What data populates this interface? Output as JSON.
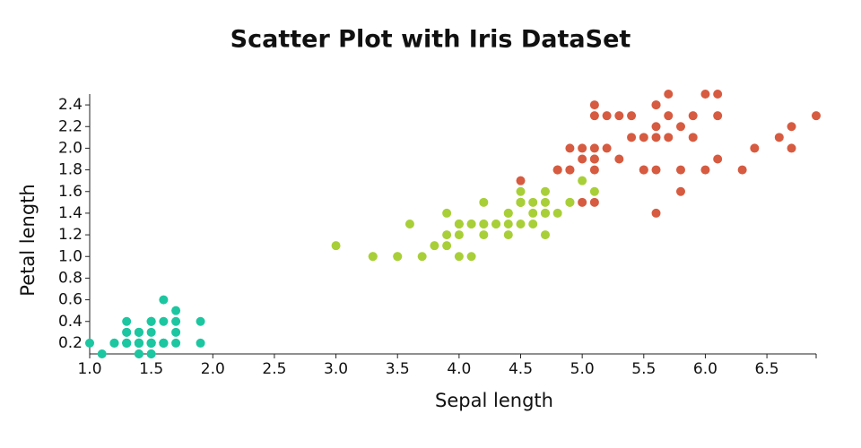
{
  "chart_data": {
    "type": "scatter",
    "title": "Scatter Plot with Iris DataSet",
    "x_label": "Sepal length",
    "y_label": "Petal length",
    "xlim": [
      1,
      6.9
    ],
    "ylim": [
      0.1,
      2.5
    ],
    "xticks": [
      {
        "value": 1,
        "label": "1.0"
      },
      1.5,
      {
        "value": 2,
        "label": "2.0"
      },
      2.5,
      {
        "value": 3,
        "label": "3.0"
      },
      3.5,
      {
        "value": 4,
        "label": "4.0"
      },
      4.5,
      {
        "value": 5,
        "label": "5.0"
      },
      5.5,
      {
        "value": 6,
        "label": "6.0"
      },
      6.5
    ],
    "yticks": [
      0.2,
      0.4,
      0.6,
      0.8,
      {
        "value": 1,
        "label": "1.0"
      },
      1.2,
      1.4,
      1.6,
      1.8,
      {
        "value": 2,
        "label": "2.0"
      },
      2.2,
      2.4
    ],
    "grid": false,
    "series": [
      {
        "color": "#1cc6a0",
        "x": [
          1.4,
          1.4,
          1.3,
          1.5,
          1.4,
          1.7,
          1.4,
          1.5,
          1.4,
          1.5,
          1.5,
          1.6,
          1.4,
          1.1,
          1.2,
          1.5,
          1.3,
          1.4,
          1.7,
          1.5,
          1.7,
          1.5,
          1.0,
          1.7,
          1.9,
          1.6,
          1.6,
          1.5,
          1.4,
          1.6,
          1.6,
          1.5,
          1.5,
          1.4,
          1.5,
          1.2,
          1.3,
          1.4,
          1.3,
          1.5,
          1.3,
          1.3,
          1.3,
          1.6,
          1.9,
          1.4,
          1.6,
          1.4,
          1.5,
          1.4
        ],
        "values": [
          0.2,
          0.2,
          0.2,
          0.2,
          0.2,
          0.4,
          0.3,
          0.2,
          0.2,
          0.1,
          0.2,
          0.2,
          0.1,
          0.1,
          0.2,
          0.4,
          0.4,
          0.3,
          0.3,
          0.3,
          0.2,
          0.4,
          0.2,
          0.5,
          0.2,
          0.2,
          0.4,
          0.2,
          0.2,
          0.2,
          0.2,
          0.4,
          0.1,
          0.2,
          0.2,
          0.2,
          0.2,
          0.1,
          0.2,
          0.2,
          0.3,
          0.3,
          0.2,
          0.6,
          0.4,
          0.3,
          0.2,
          0.2,
          0.2,
          0.2
        ]
      },
      {
        "color": "#a8cf38",
        "x": [
          4.7,
          4.5,
          4.9,
          4.0,
          4.6,
          4.5,
          4.7,
          3.3,
          4.6,
          3.9,
          3.5,
          4.2,
          4.0,
          4.7,
          3.6,
          4.4,
          4.5,
          4.1,
          4.5,
          3.9,
          4.8,
          4.0,
          4.9,
          4.7,
          4.3,
          4.4,
          4.8,
          5.0,
          4.5,
          3.5,
          3.8,
          3.7,
          3.9,
          5.1,
          4.5,
          4.5,
          4.7,
          4.4,
          4.1,
          4.0,
          4.4,
          4.6,
          4.0,
          3.3,
          4.2,
          4.2,
          4.2,
          4.3,
          3.0,
          4.1
        ],
        "values": [
          1.4,
          1.5,
          1.5,
          1.3,
          1.5,
          1.3,
          1.6,
          1.0,
          1.3,
          1.4,
          1.0,
          1.5,
          1.0,
          1.4,
          1.3,
          1.4,
          1.5,
          1.0,
          1.5,
          1.1,
          1.8,
          1.3,
          1.5,
          1.2,
          1.3,
          1.4,
          1.4,
          1.7,
          1.5,
          1.0,
          1.1,
          1.0,
          1.2,
          1.6,
          1.5,
          1.6,
          1.5,
          1.3,
          1.3,
          1.3,
          1.2,
          1.4,
          1.2,
          1.0,
          1.3,
          1.2,
          1.3,
          1.3,
          1.1,
          1.3
        ]
      },
      {
        "color": "#d65b40",
        "x": [
          6.0,
          5.1,
          5.9,
          5.6,
          5.8,
          6.6,
          4.5,
          6.3,
          5.8,
          6.1,
          5.1,
          5.3,
          5.5,
          5.0,
          5.1,
          5.3,
          5.5,
          6.7,
          6.9,
          5.0,
          5.7,
          4.9,
          6.7,
          4.9,
          5.7,
          6.0,
          4.8,
          4.9,
          5.6,
          5.8,
          6.1,
          6.4,
          5.6,
          5.1,
          5.6,
          6.1,
          5.6,
          5.5,
          4.8,
          5.4,
          5.6,
          5.1,
          5.1,
          5.9,
          5.7,
          5.2,
          5.0,
          5.2,
          5.4,
          5.1
        ],
        "values": [
          2.5,
          1.9,
          2.1,
          1.8,
          2.2,
          2.1,
          1.7,
          1.8,
          1.8,
          2.5,
          2.0,
          1.9,
          2.1,
          2.0,
          2.4,
          2.3,
          1.8,
          2.2,
          2.3,
          1.5,
          2.3,
          2.0,
          2.0,
          1.8,
          2.1,
          1.8,
          1.8,
          1.8,
          2.1,
          1.6,
          1.9,
          2.0,
          2.2,
          1.5,
          1.4,
          2.3,
          2.4,
          1.8,
          1.8,
          2.1,
          2.4,
          2.3,
          1.9,
          2.3,
          2.5,
          2.3,
          1.9,
          2.0,
          2.3,
          1.8
        ]
      }
    ]
  }
}
